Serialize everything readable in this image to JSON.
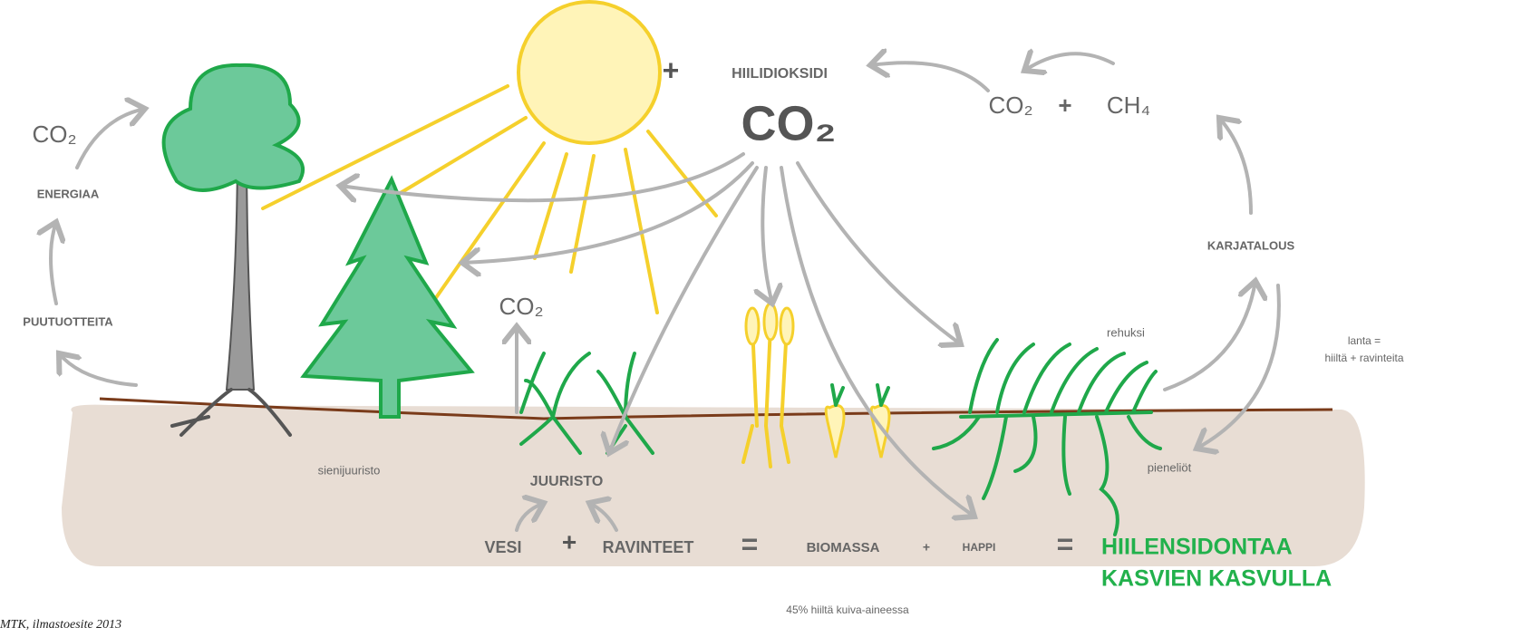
{
  "header": {
    "sun_plus": "+",
    "sun_label": "HIILIDIOKSIDI",
    "co2_main": "CO₂"
  },
  "livestock": {
    "co2": "CO₂",
    "plus": "+",
    "ch4": "CH₄",
    "label": "KARJATALOUS",
    "manure_1": "lanta =",
    "manure_2": "hiiltä + ravinteita",
    "feed": "rehuksi",
    "microbes": "pieneliöt"
  },
  "forest": {
    "co2": "CO₂",
    "energy": "ENERGIAA",
    "products": "PUUTUOTTEITA",
    "mycorrhiza": "sienijuuristo"
  },
  "soil": {
    "co2": "CO₂",
    "roots": "JUURISTO"
  },
  "equation": {
    "water": "VESI",
    "plus_1": "+",
    "nutrients": "RAVINTEET",
    "equals_1": "=",
    "biomass": "BIOMASSA",
    "plus_2": "+",
    "oxygen": "HAPPI",
    "equals_2": "=",
    "result_1": "HIILENSIDONTAA",
    "result_2": "KASVIEN KASVULLA",
    "note": "45% hiiltä kuiva-aineessa"
  },
  "credit": "MTK, ilmastoesite 2013"
}
